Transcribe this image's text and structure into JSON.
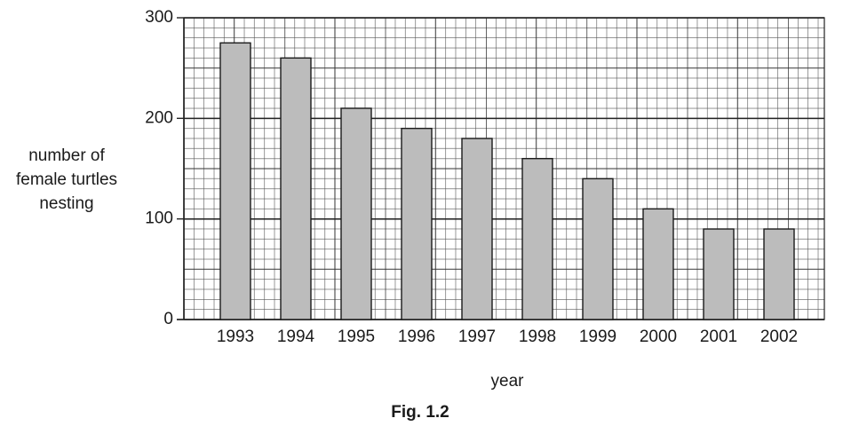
{
  "chart_data": {
    "type": "bar",
    "caption": "Fig. 1.2",
    "xlabel": "year",
    "ylabel": [
      "number of",
      "female turtles",
      "nesting"
    ],
    "categories": [
      "1993",
      "1994",
      "1995",
      "1996",
      "1997",
      "1998",
      "1999",
      "2000",
      "2001",
      "2002"
    ],
    "values": [
      275,
      260,
      210,
      190,
      180,
      160,
      140,
      110,
      90,
      90
    ],
    "color": "#bcbcbc",
    "ylim": [
      0,
      300
    ],
    "yticks": [
      0,
      100,
      200,
      300
    ],
    "grid": true
  }
}
